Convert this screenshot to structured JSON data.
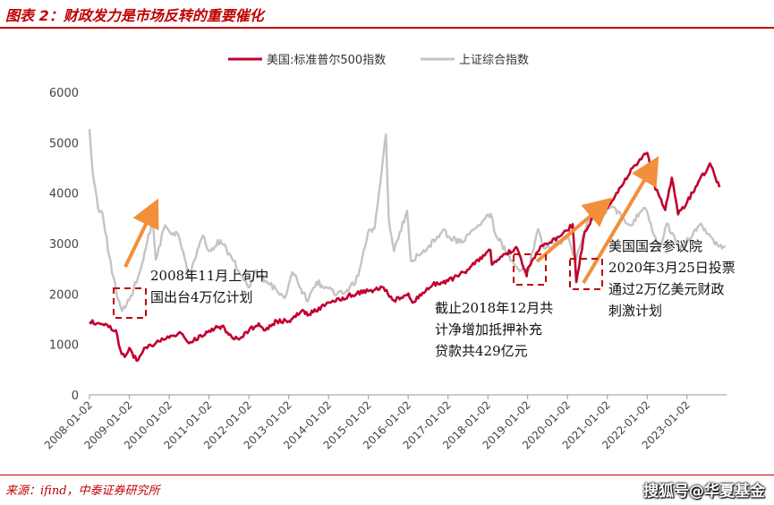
{
  "figure": {
    "title": "图表 2：财政发力是市场反转的重要催化",
    "source": "来源：ifind，中泰证券研究所",
    "watermark": "搜狐号@华夏基金"
  },
  "colors": {
    "sp500": "#c0002f",
    "shanghai": "#c4c4c4",
    "accent": "#c00000",
    "arrow": "#f28f3b",
    "box": "#c00000"
  },
  "chart_data": {
    "type": "line",
    "title": "",
    "xlabel": "",
    "ylabel": "",
    "ylim": [
      0,
      6000
    ],
    "yticks": [
      0,
      1000,
      2000,
      3000,
      4000,
      5000,
      6000
    ],
    "xlim": [
      "2008-01-02",
      "2023-12-31"
    ],
    "xticks": [
      "2008-01-02",
      "2009-01-02",
      "2010-01-02",
      "2011-01-02",
      "2012-01-02",
      "2013-01-02",
      "2014-01-02",
      "2015-01-02",
      "2016-01-02",
      "2017-01-02",
      "2018-01-02",
      "2019-01-02",
      "2020-01-02",
      "2021-01-02",
      "2022-01-02",
      "2023-01-02"
    ],
    "legend_position": "top",
    "grid": false,
    "series": [
      {
        "name": "美国:标准普尔500指数",
        "points": [
          [
            "2008-01-02",
            1447
          ],
          [
            "2008-05-01",
            1400
          ],
          [
            "2008-09-01",
            1280
          ],
          [
            "2008-10-10",
            900
          ],
          [
            "2008-11-20",
            752
          ],
          [
            "2009-01-02",
            931
          ],
          [
            "2009-03-09",
            677
          ],
          [
            "2009-06-01",
            940
          ],
          [
            "2009-10-01",
            1060
          ],
          [
            "2010-01-02",
            1133
          ],
          [
            "2010-04-23",
            1217
          ],
          [
            "2010-07-02",
            1022
          ],
          [
            "2011-01-03",
            1272
          ],
          [
            "2011-04-29",
            1363
          ],
          [
            "2011-08-08",
            1119
          ],
          [
            "2011-10-03",
            1099
          ],
          [
            "2012-01-03",
            1277
          ],
          [
            "2012-04-02",
            1419
          ],
          [
            "2012-06-01",
            1278
          ],
          [
            "2012-09-14",
            1465
          ],
          [
            "2013-01-02",
            1462
          ],
          [
            "2013-05-21",
            1669
          ],
          [
            "2013-06-24",
            1573
          ],
          [
            "2014-01-02",
            1832
          ],
          [
            "2014-09-18",
            2011
          ],
          [
            "2015-01-02",
            2058
          ],
          [
            "2015-05-21",
            2131
          ],
          [
            "2015-08-25",
            1867
          ],
          [
            "2016-01-04",
            2012
          ],
          [
            "2016-02-11",
            1829
          ],
          [
            "2016-08-15",
            2190
          ],
          [
            "2017-01-03",
            2258
          ],
          [
            "2017-06-01",
            2430
          ],
          [
            "2018-01-26",
            2872
          ],
          [
            "2018-02-08",
            2581
          ],
          [
            "2018-09-20",
            2930
          ],
          [
            "2018-12-24",
            2351
          ],
          [
            "2019-01-02",
            2510
          ],
          [
            "2019-04-30",
            2945
          ],
          [
            "2019-07-26",
            3025
          ],
          [
            "2020-01-02",
            3258
          ],
          [
            "2020-02-19",
            3386
          ],
          [
            "2020-03-23",
            2237
          ],
          [
            "2020-06-08",
            3232
          ],
          [
            "2020-09-02",
            3580
          ],
          [
            "2021-01-04",
            3700
          ],
          [
            "2021-06-01",
            4200
          ],
          [
            "2021-09-02",
            4537
          ],
          [
            "2022-01-03",
            4796
          ],
          [
            "2022-03-08",
            4170
          ],
          [
            "2022-06-16",
            3666
          ],
          [
            "2022-08-16",
            4305
          ],
          [
            "2022-10-12",
            3577
          ],
          [
            "2023-01-03",
            3824
          ],
          [
            "2023-07-31",
            4588
          ],
          [
            "2023-10-27",
            4117
          ]
        ]
      },
      {
        "name": "上证综合指数",
        "points": [
          [
            "2008-01-02",
            5272
          ],
          [
            "2008-02-01",
            4400
          ],
          [
            "2008-03-20",
            3700
          ],
          [
            "2008-05-01",
            3600
          ],
          [
            "2008-07-01",
            2750
          ],
          [
            "2008-09-18",
            1895
          ],
          [
            "2008-10-28",
            1664
          ],
          [
            "2009-01-02",
            1880
          ],
          [
            "2009-04-01",
            2400
          ],
          [
            "2009-08-04",
            3478
          ],
          [
            "2009-09-01",
            2680
          ],
          [
            "2009-11-24",
            3361
          ],
          [
            "2010-01-02",
            3243
          ],
          [
            "2010-04-01",
            3150
          ],
          [
            "2010-07-02",
            2319
          ],
          [
            "2010-11-08",
            3159
          ],
          [
            "2011-01-04",
            2852
          ],
          [
            "2011-04-18",
            3067
          ],
          [
            "2011-08-01",
            2700
          ],
          [
            "2011-12-28",
            2134
          ],
          [
            "2012-03-01",
            2460
          ],
          [
            "2012-07-01",
            2200
          ],
          [
            "2012-12-04",
            1949
          ],
          [
            "2013-02-06",
            2432
          ],
          [
            "2013-06-25",
            1850
          ],
          [
            "2013-09-12",
            2240
          ],
          [
            "2014-01-02",
            2109
          ],
          [
            "2014-03-20",
            1993
          ],
          [
            "2014-07-01",
            2050
          ],
          [
            "2014-10-01",
            2360
          ],
          [
            "2014-12-31",
            3234
          ],
          [
            "2015-03-01",
            3300
          ],
          [
            "2015-06-12",
            5166
          ],
          [
            "2015-07-08",
            3507
          ],
          [
            "2015-08-26",
            2850
          ],
          [
            "2015-12-23",
            3650
          ],
          [
            "2016-01-28",
            2656
          ],
          [
            "2016-07-01",
            2930
          ],
          [
            "2016-11-29",
            3280
          ],
          [
            "2017-01-03",
            3135
          ],
          [
            "2017-05-11",
            3022
          ],
          [
            "2017-11-14",
            3447
          ],
          [
            "2018-01-29",
            3587
          ],
          [
            "2018-03-01",
            3250
          ],
          [
            "2018-07-01",
            2780
          ],
          [
            "2018-10-19",
            2450
          ],
          [
            "2019-01-04",
            2440
          ],
          [
            "2019-04-08",
            3288
          ],
          [
            "2019-06-01",
            2900
          ],
          [
            "2020-01-13",
            3115
          ],
          [
            "2020-03-19",
            2646
          ],
          [
            "2020-07-09",
            3450
          ],
          [
            "2021-02-18",
            3731
          ],
          [
            "2021-07-28",
            3360
          ],
          [
            "2021-12-13",
            3708
          ],
          [
            "2022-04-26",
            2886
          ],
          [
            "2022-07-01",
            3400
          ],
          [
            "2022-10-31",
            2893
          ],
          [
            "2023-05-09",
            3395
          ],
          [
            "2023-10-23",
            2940
          ],
          [
            "2023-12-20",
            2930
          ]
        ]
      }
    ],
    "annotations": [
      {
        "lines": [
          "2008年11月上旬中",
          "国出台4万亿计划"
        ]
      },
      {
        "lines": [
          "截止2018年12月共",
          "计净增加抵押补充",
          "贷款共429亿元"
        ]
      },
      {
        "lines": [
          "美国国会参议院",
          "2020年3月25日投票",
          "通过2万亿美元财政",
          "刺激计划"
        ]
      }
    ]
  }
}
